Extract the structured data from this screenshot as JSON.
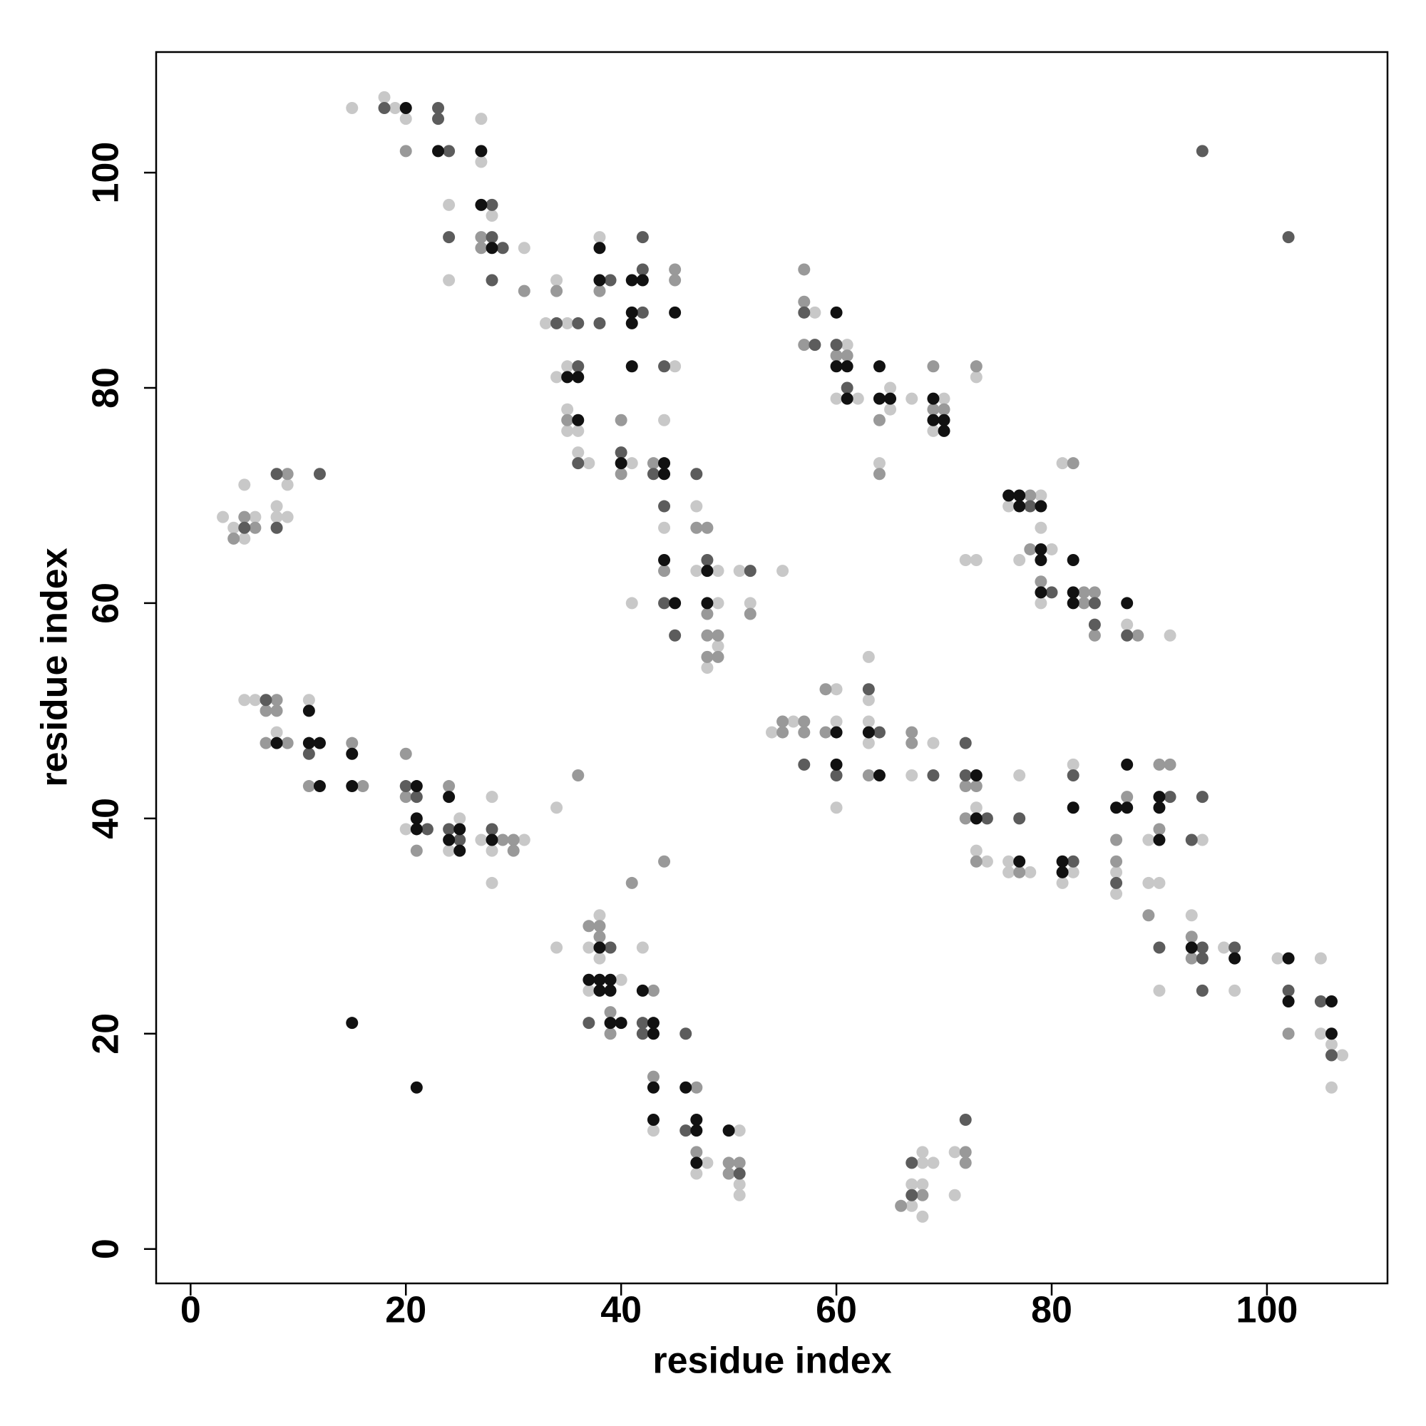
{
  "chart_data": {
    "type": "scatter",
    "xlabel": "residue index",
    "ylabel": "residue index",
    "xlim": [
      -3.2,
      111.2
    ],
    "ylim": [
      -3.2,
      111.2
    ],
    "xticks": [
      0,
      20,
      40,
      60,
      80,
      100
    ],
    "yticks": [
      0,
      20,
      40,
      60,
      80,
      100
    ],
    "grid": false,
    "series": [
      {
        "color": "#c8c8c8",
        "x": [
          15,
          18,
          19,
          20,
          27,
          27,
          24,
          24,
          28,
          31,
          33,
          35,
          34,
          38,
          45,
          34,
          35,
          35,
          35,
          36,
          36,
          37,
          41,
          44,
          44,
          47,
          47,
          49,
          49,
          49,
          48,
          51,
          52,
          55,
          41,
          58,
          61,
          60,
          62,
          65,
          65,
          64,
          67,
          70,
          69,
          73,
          76,
          79,
          79,
          80,
          77,
          72,
          73,
          81,
          79,
          87,
          91,
          3,
          4,
          5,
          5,
          6,
          8,
          8,
          9,
          9,
          5,
          6,
          8,
          11,
          20,
          25,
          24,
          28,
          27,
          31,
          28,
          28,
          34,
          34,
          38,
          37,
          38,
          40,
          37,
          42,
          43,
          48,
          47,
          51,
          51,
          51,
          67,
          67,
          68,
          68,
          68,
          69,
          68,
          71,
          71,
          54,
          56,
          60,
          60,
          60,
          63,
          63,
          63,
          63,
          67,
          69,
          73,
          73,
          74,
          77,
          76,
          76,
          78,
          82,
          81,
          82,
          86,
          86,
          89,
          89,
          90,
          94,
          93,
          90,
          96,
          97,
          101,
          105,
          105,
          106,
          107,
          106
        ],
        "y": [
          106,
          107,
          106,
          105,
          105,
          101,
          97,
          90,
          96,
          93,
          86,
          86,
          90,
          94,
          82,
          81,
          82,
          78,
          76,
          76,
          74,
          73,
          73,
          77,
          67,
          69,
          63,
          63,
          60,
          56,
          54,
          63,
          60,
          63,
          60,
          87,
          84,
          79,
          79,
          80,
          78,
          73,
          79,
          79,
          76,
          81,
          69,
          70,
          67,
          65,
          64,
          64,
          64,
          73,
          60,
          58,
          57,
          68,
          67,
          66,
          71,
          68,
          69,
          68,
          71,
          68,
          51,
          51,
          48,
          51,
          39,
          40,
          37,
          42,
          38,
          38,
          37,
          34,
          41,
          28,
          31,
          28,
          27,
          25,
          24,
          28,
          11,
          8,
          7,
          11,
          6,
          5,
          4,
          6,
          6,
          8,
          9,
          8,
          3,
          9,
          5,
          48,
          49,
          52,
          49,
          41,
          55,
          51,
          49,
          47,
          44,
          47,
          41,
          37,
          36,
          44,
          36,
          35,
          35,
          35,
          34,
          45,
          35,
          33,
          38,
          34,
          34,
          38,
          31,
          24,
          28,
          24,
          27,
          27,
          20,
          19,
          18,
          15
        ]
      },
      {
        "color": "#999999",
        "x": [
          20,
          27,
          27,
          31,
          34,
          38,
          45,
          45,
          35,
          40,
          40,
          43,
          47,
          48,
          44,
          48,
          48,
          49,
          48,
          49,
          52,
          57,
          57,
          57,
          60,
          61,
          64,
          64,
          69,
          69,
          70,
          73,
          78,
          78,
          82,
          79,
          83,
          84,
          83,
          84,
          88,
          4,
          5,
          6,
          9,
          8,
          7,
          8,
          7,
          9,
          11,
          15,
          16,
          20,
          20,
          21,
          24,
          29,
          30,
          30,
          37,
          38,
          38,
          39,
          39,
          41,
          43,
          44,
          36,
          43,
          47,
          47,
          50,
          51,
          50,
          66,
          68,
          72,
          72,
          55,
          55,
          57,
          57,
          59,
          59,
          63,
          67,
          67,
          72,
          73,
          72,
          73,
          77,
          86,
          86,
          87,
          90,
          91,
          90,
          89,
          93,
          93,
          102
        ],
        "y": [
          102,
          94,
          93,
          89,
          89,
          89,
          91,
          90,
          77,
          77,
          72,
          73,
          67,
          67,
          63,
          59,
          57,
          57,
          55,
          55,
          59,
          91,
          88,
          84,
          83,
          83,
          77,
          72,
          82,
          78,
          78,
          82,
          70,
          65,
          73,
          62,
          61,
          61,
          60,
          57,
          57,
          66,
          68,
          67,
          72,
          51,
          50,
          50,
          47,
          47,
          43,
          47,
          43,
          46,
          42,
          37,
          43,
          38,
          38,
          37,
          30,
          30,
          29,
          22,
          20,
          34,
          24,
          36,
          44,
          16,
          15,
          9,
          8,
          8,
          7,
          4,
          5,
          9,
          8,
          48,
          49,
          49,
          48,
          52,
          48,
          44,
          48,
          47,
          43,
          43,
          40,
          36,
          35,
          38,
          36,
          42,
          45,
          45,
          39,
          31,
          29,
          27,
          20
        ]
      },
      {
        "color": "#5c5c5c",
        "x": [
          18,
          23,
          23,
          24,
          24,
          28,
          28,
          29,
          28,
          34,
          36,
          39,
          38,
          42,
          42,
          42,
          44,
          36,
          36,
          40,
          43,
          47,
          44,
          44,
          45,
          48,
          52,
          57,
          58,
          60,
          61,
          5,
          8,
          8,
          12,
          7,
          11,
          20,
          21,
          22,
          24,
          25,
          28,
          39,
          37,
          42,
          42,
          46,
          46,
          51,
          67,
          67,
          72,
          57,
          60,
          63,
          64,
          69,
          72,
          72,
          74,
          77,
          82,
          82,
          86,
          91,
          93,
          94,
          94,
          94,
          90,
          94,
          97,
          102,
          105,
          106,
          94,
          102,
          78,
          80,
          84,
          84,
          87
        ],
        "y": [
          106,
          106,
          105,
          102,
          94,
          97,
          94,
          93,
          90,
          86,
          86,
          90,
          86,
          94,
          91,
          87,
          82,
          82,
          73,
          74,
          72,
          72,
          69,
          60,
          57,
          64,
          63,
          87,
          84,
          84,
          80,
          67,
          72,
          67,
          72,
          51,
          46,
          43,
          42,
          39,
          39,
          38,
          39,
          28,
          21,
          21,
          20,
          20,
          11,
          7,
          5,
          8,
          12,
          45,
          44,
          52,
          48,
          44,
          47,
          44,
          40,
          40,
          36,
          44,
          34,
          42,
          38,
          42,
          28,
          27,
          28,
          24,
          28,
          24,
          23,
          18,
          102,
          94,
          69,
          61,
          60,
          58,
          57
        ]
      },
      {
        "color": "#111111",
        "x": [
          20,
          23,
          27,
          27,
          28,
          38,
          38,
          41,
          42,
          41,
          41,
          41,
          45,
          35,
          36,
          36,
          40,
          44,
          44,
          44,
          45,
          48,
          48,
          60,
          60,
          61,
          61,
          64,
          64,
          65,
          69,
          69,
          70,
          70,
          76,
          77,
          77,
          79,
          79,
          79,
          82,
          79,
          82,
          82,
          87,
          8,
          11,
          11,
          12,
          12,
          15,
          15,
          21,
          21,
          21,
          24,
          25,
          24,
          25,
          28,
          15,
          21,
          38,
          37,
          38,
          39,
          38,
          39,
          39,
          40,
          42,
          43,
          43,
          43,
          43,
          46,
          47,
          47,
          47,
          50,
          60,
          60,
          63,
          64,
          73,
          73,
          77,
          81,
          81,
          82,
          86,
          87,
          87,
          90,
          90,
          90,
          93,
          97,
          102,
          102,
          106,
          106
        ],
        "y": [
          106,
          102,
          102,
          97,
          93,
          93,
          90,
          90,
          90,
          87,
          86,
          82,
          87,
          81,
          81,
          77,
          73,
          73,
          72,
          64,
          60,
          63,
          60,
          87,
          82,
          82,
          79,
          82,
          79,
          79,
          79,
          77,
          77,
          76,
          70,
          70,
          69,
          69,
          65,
          64,
          64,
          61,
          61,
          60,
          60,
          47,
          50,
          47,
          47,
          43,
          46,
          43,
          43,
          40,
          39,
          42,
          39,
          38,
          37,
          38,
          21,
          15,
          28,
          25,
          25,
          25,
          24,
          24,
          21,
          21,
          24,
          21,
          20,
          15,
          12,
          15,
          12,
          11,
          8,
          11,
          48,
          45,
          48,
          44,
          44,
          40,
          36,
          36,
          35,
          41,
          41,
          41,
          45,
          42,
          41,
          38,
          28,
          27,
          27,
          23,
          23,
          20
        ]
      }
    ]
  }
}
